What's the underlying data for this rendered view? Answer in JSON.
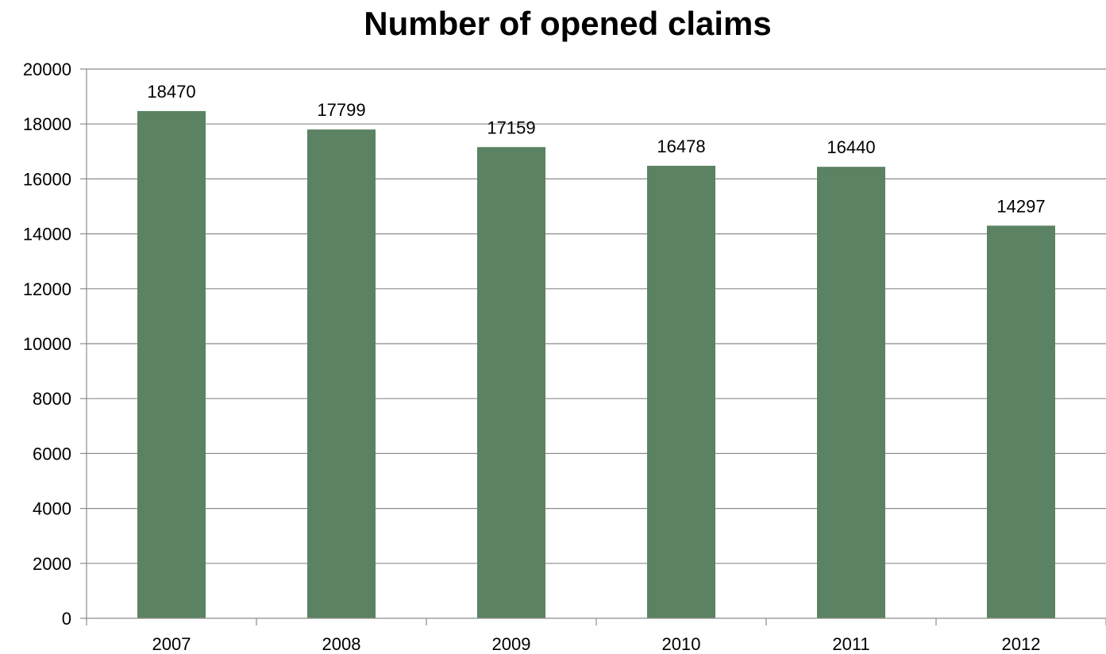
{
  "chart_data": {
    "type": "bar",
    "title": "Number of opened claims",
    "xlabel": "",
    "ylabel": "",
    "categories": [
      "2007",
      "2008",
      "2009",
      "2010",
      "2011",
      "2012"
    ],
    "series": [
      {
        "values": [
          18470,
          17799,
          17159,
          16478,
          16440,
          14297
        ],
        "color": "#5b8262"
      }
    ],
    "data_labels": [
      "18470",
      "17799",
      "17159",
      "16478",
      "16440",
      "14297"
    ],
    "ylim": [
      0,
      20000
    ],
    "yticks": [
      0,
      2000,
      4000,
      6000,
      8000,
      10000,
      12000,
      14000,
      16000,
      18000,
      20000
    ],
    "ytick_labels": [
      "0",
      "2000",
      "4000",
      "6000",
      "8000",
      "10000",
      "12000",
      "14000",
      "16000",
      "18000",
      "20000"
    ],
    "grid": true,
    "legend": "none",
    "colors": {
      "bar": "#5b8262",
      "gridline": "#8c8c8c",
      "axis": "#8c8c8c",
      "text": "#000000"
    }
  }
}
